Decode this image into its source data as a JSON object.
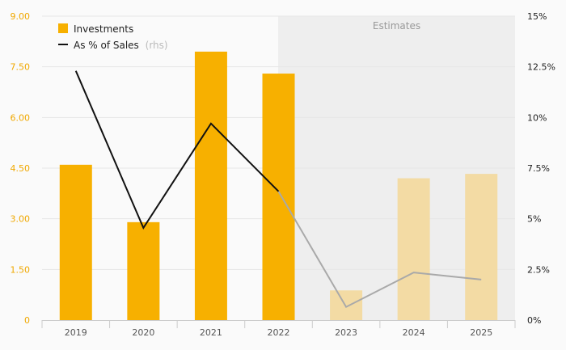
{
  "chart_data": {
    "type": "bar",
    "categories": [
      "2019",
      "2020",
      "2021",
      "2022",
      "2023",
      "2024",
      "2025"
    ],
    "series": [
      {
        "name": "Investments",
        "kind": "bar",
        "axis": "left",
        "values": [
          4.6,
          2.9,
          7.95,
          7.3,
          0.88,
          4.2,
          4.33
        ]
      },
      {
        "name": "As % of Sales",
        "name_suffix": "(rhs)",
        "kind": "line",
        "axis": "right",
        "values": [
          12.3,
          4.55,
          9.7,
          6.35,
          0.65,
          2.35,
          2.0
        ]
      }
    ],
    "estimate_categories": [
      "2023",
      "2024",
      "2025"
    ],
    "estimates_label": "Estimates",
    "y_left": {
      "lim": [
        0,
        9
      ],
      "ticks": [
        "0",
        "1.50",
        "3.00",
        "4.50",
        "6.00",
        "7.50",
        "9.00"
      ]
    },
    "y_right": {
      "lim": [
        0,
        15
      ],
      "ticks": [
        "0%",
        "2.5%",
        "5%",
        "7.5%",
        "10%",
        "12.5%",
        "15%"
      ]
    },
    "legend_position": "top-left",
    "grid": true,
    "colors": {
      "bar_actual": "#f7b000",
      "bar_estimate": "#f3dba4",
      "line_actual": "#111111",
      "line_estimate": "#a9a9a9",
      "estimates_shade": "#eeeeee",
      "left_axis_text": "#f0a800"
    }
  }
}
